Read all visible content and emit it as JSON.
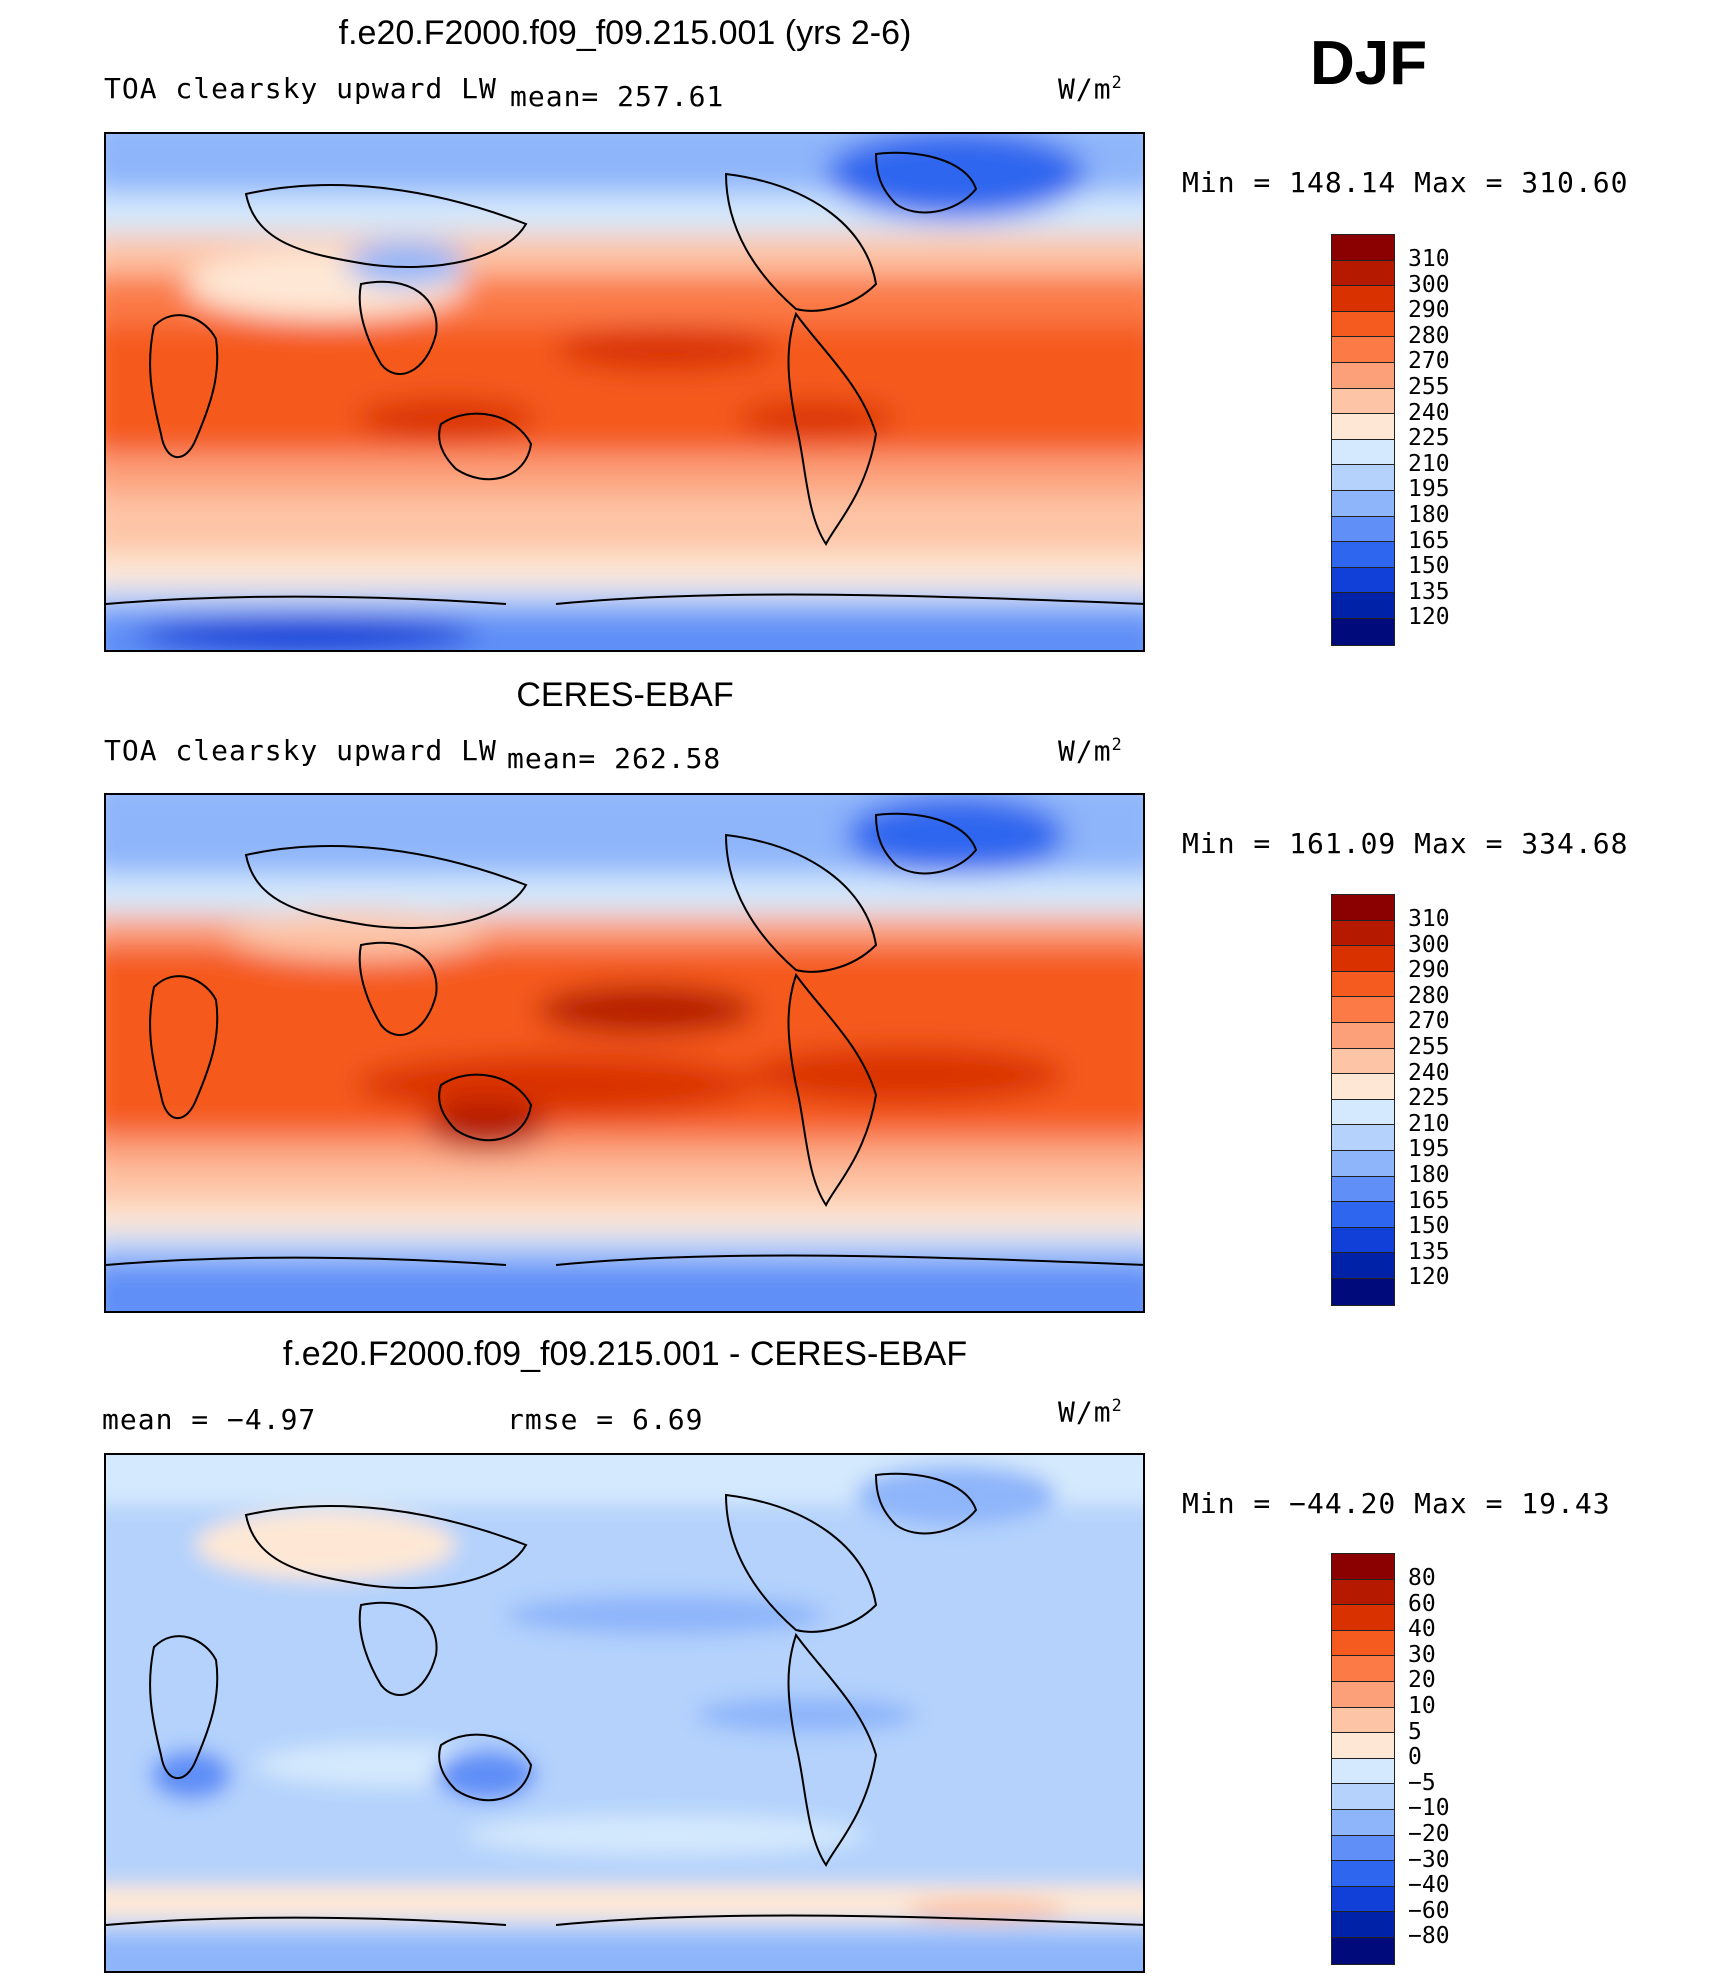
{
  "season": "DJF",
  "units_base": "W/m",
  "units_exp": "2",
  "panels": [
    {
      "title": "f.e20.F2000.f09_f09.215.001 (yrs 2-6)",
      "left_label": "TOA clearsky upward LW",
      "stat": "mean= 257.61",
      "minmax": "Min  =  148.14 Max  =  310.60",
      "colorbar_labels": [
        "310",
        "300",
        "290",
        "280",
        "270",
        "255",
        "240",
        "225",
        "210",
        "195",
        "180",
        "165",
        "150",
        "135",
        "120"
      ],
      "colors": [
        "#8b0000",
        "#b51a00",
        "#d93200",
        "#f55a1e",
        "#fb7a46",
        "#fca07a",
        "#fdc4a6",
        "#fee8d5",
        "#d4e9fd",
        "#b4d2fc",
        "#8eb5fa",
        "#5f8ff7",
        "#2f66ef",
        "#1040d8",
        "#0022a8",
        "#000a7a"
      ]
    },
    {
      "title": "CERES-EBAF",
      "left_label": "TOA clearsky upward LW",
      "stat": "mean= 262.58",
      "minmax": "Min  =  161.09 Max  =  334.68",
      "colorbar_labels": [
        "310",
        "300",
        "290",
        "280",
        "270",
        "255",
        "240",
        "225",
        "210",
        "195",
        "180",
        "165",
        "150",
        "135",
        "120"
      ],
      "colors": [
        "#8b0000",
        "#b51a00",
        "#d93200",
        "#f55a1e",
        "#fb7a46",
        "#fca07a",
        "#fdc4a6",
        "#fee8d5",
        "#d4e9fd",
        "#b4d2fc",
        "#8eb5fa",
        "#5f8ff7",
        "#2f66ef",
        "#1040d8",
        "#0022a8",
        "#000a7a"
      ]
    },
    {
      "title": "f.e20.F2000.f09_f09.215.001 - CERES-EBAF",
      "left_label": "mean =   −4.97",
      "stat": "rmse =    6.69",
      "minmax": "Min  =  −44.20 Max  =   19.43",
      "colorbar_labels": [
        "80",
        "60",
        "40",
        "30",
        "20",
        "10",
        "5",
        "0",
        "−5",
        "−10",
        "−20",
        "−30",
        "−40",
        "−60",
        "−80"
      ],
      "colors": [
        "#8b0000",
        "#b51a00",
        "#d93200",
        "#f55a1e",
        "#fb7a46",
        "#fca07a",
        "#fdc4a6",
        "#fee8d5",
        "#d4e9fd",
        "#b4d2fc",
        "#8eb5fa",
        "#5f8ff7",
        "#2f66ef",
        "#1040d8",
        "#0022a8",
        "#000a7a"
      ]
    }
  ]
}
